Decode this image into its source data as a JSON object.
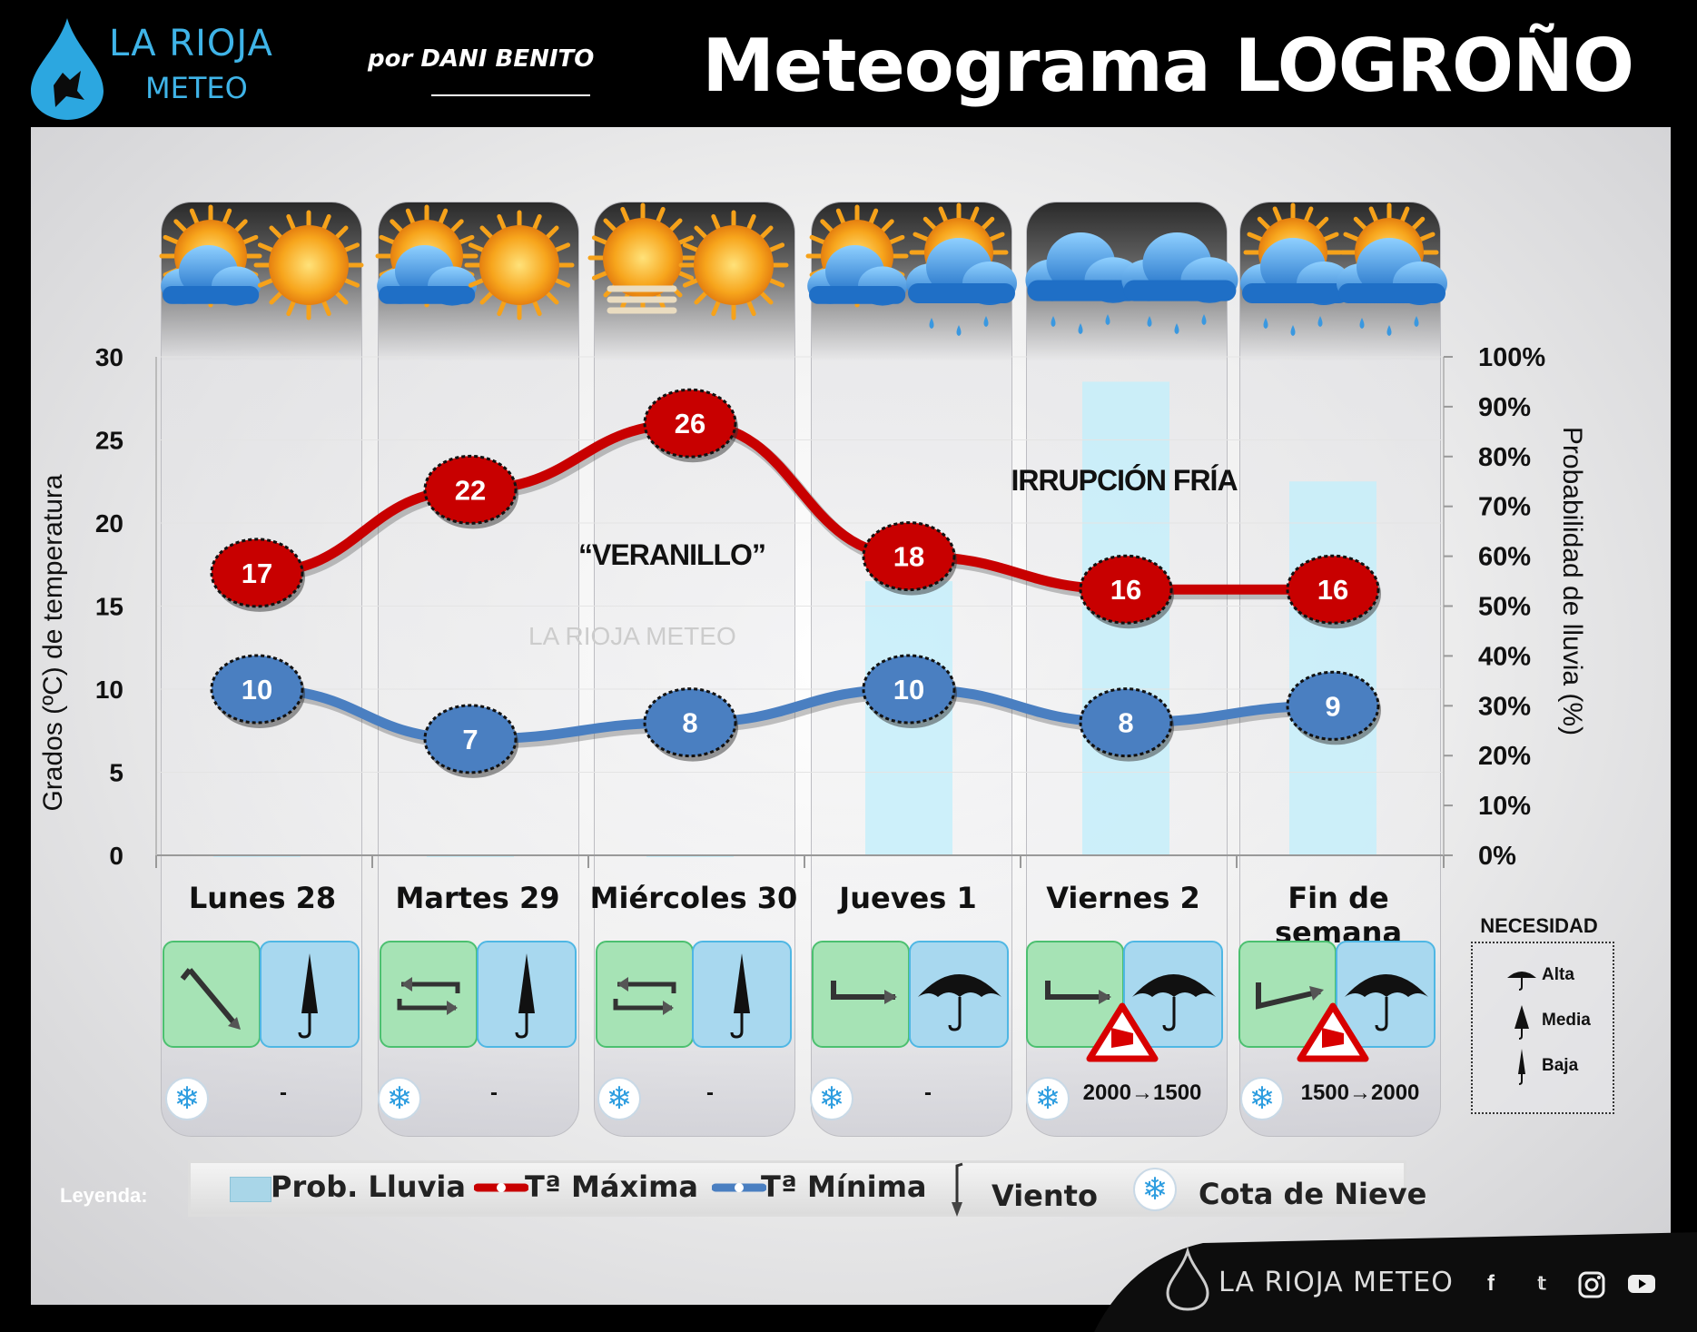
{
  "header": {
    "logo_line1": "LA RIOJA",
    "logo_line2": "METEO",
    "byline": "por DANI BENITO",
    "title": "Meteograma LOGROÑO"
  },
  "colors": {
    "max_line": "#c80000",
    "min_line": "#4a7fc1",
    "rain_bar": "#c6eefa",
    "wind_box": "#a6e3b5",
    "umbrella_box": "#a8d8ef"
  },
  "chart_data": {
    "type": "line",
    "categories": [
      "Lunes 28",
      "Martes 29",
      "Miércoles 30",
      "Jueves 1",
      "Viernes 2",
      "Fin de semana"
    ],
    "series": [
      {
        "name": "Tª Máxima",
        "values": [
          17,
          22,
          26,
          18,
          16,
          16
        ]
      },
      {
        "name": "Tª Mínima",
        "values": [
          10,
          7,
          8,
          10,
          8,
          9
        ]
      },
      {
        "name": "Prob. Lluvia",
        "values": [
          0,
          0,
          0,
          55,
          95,
          75
        ]
      }
    ],
    "ylabel": "Grados (ºC) de temperatura",
    "ylim": [
      0,
      30
    ],
    "yticks": [
      "0",
      "5",
      "10",
      "15",
      "20",
      "25",
      "30"
    ],
    "y2label": "Probabilidad de lluvia (%)",
    "y2lim": [
      0,
      100
    ],
    "y2ticks": [
      "0%",
      "10%",
      "20%",
      "30%",
      "40%",
      "50%",
      "60%",
      "70%",
      "80%",
      "90%",
      "100%"
    ],
    "annotations": [
      "“VERANILLO”",
      "IRRUPCIÓN FRÍA"
    ],
    "watermark": "LA RIOJA METEO",
    "sky_icons": [
      [
        "partly-cloudy-icon",
        "sunny-icon"
      ],
      [
        "partly-cloudy-icon",
        "sunny-icon"
      ],
      [
        "sun-haze-icon",
        "sunny-icon"
      ],
      [
        "partly-cloudy-icon",
        "partly-cloudy-rain-icon"
      ],
      [
        "cloudy-rain-icon",
        "cloudy-rain-icon"
      ],
      [
        "partly-cloudy-rain-icon",
        "partly-cloudy-rain-icon"
      ]
    ]
  },
  "days": [
    {
      "label": "Lunes 28",
      "wind": "NW",
      "umbrella": "Baja",
      "snow": "-",
      "warning": false
    },
    {
      "label": "Martes 29",
      "wind": "variable",
      "umbrella": "Baja",
      "snow": "-",
      "warning": false
    },
    {
      "label": "Miércoles 30",
      "wind": "variable",
      "umbrella": "Baja",
      "snow": "-",
      "warning": false
    },
    {
      "label": "Jueves 1",
      "wind": "W",
      "umbrella": "Alta",
      "snow": "-",
      "warning": false
    },
    {
      "label": "Viernes 2",
      "wind": "W",
      "umbrella": "Alta",
      "snow": "2000→1500",
      "warning": true
    },
    {
      "label": "Fin de semana",
      "wind": "SW",
      "umbrella": "Alta",
      "snow": "1500→2000",
      "warning": true
    }
  ],
  "necesidad": {
    "title": "NECESIDAD",
    "levels": [
      "Alta",
      "Media",
      "Baja"
    ]
  },
  "legend": {
    "title": "Leyenda:",
    "items": [
      "Prob. Lluvia",
      "Tª Máxima",
      "Tª Mínima",
      "Viento",
      "Cota de Nieve"
    ]
  },
  "footer": {
    "brand": "LA RIOJA METEO",
    "social": [
      "facebook-icon",
      "twitter-icon",
      "instagram-icon",
      "youtube-icon"
    ]
  }
}
